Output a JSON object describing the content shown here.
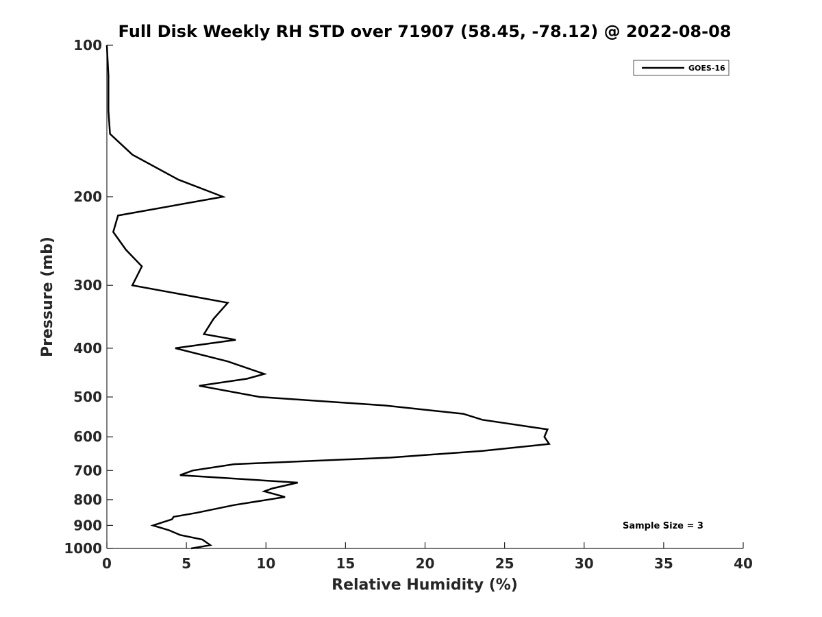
{
  "chart_data": {
    "type": "line",
    "title": "Full Disk Weekly RH STD over 71907 (58.45, -78.12) @ 2022-08-08",
    "xlabel": "Relative Humidity (%)",
    "ylabel": "Pressure (mb)",
    "xlim": [
      0,
      40
    ],
    "ylim": [
      100,
      1000
    ],
    "y_scale": "log",
    "y_reversed": true,
    "x_ticks": [
      0,
      5,
      10,
      15,
      20,
      25,
      30,
      35,
      40
    ],
    "y_ticks": [
      100,
      200,
      300,
      400,
      500,
      600,
      700,
      800,
      900,
      1000
    ],
    "grid": false,
    "legend_position": "top-right",
    "series": [
      {
        "name": "GOES-16",
        "color": "#000000",
        "points": [
          [
            0.0,
            100
          ],
          [
            0.1,
            115
          ],
          [
            0.1,
            135
          ],
          [
            0.2,
            150
          ],
          [
            1.6,
            165
          ],
          [
            4.5,
            185
          ],
          [
            7.3,
            200
          ],
          [
            0.7,
            218
          ],
          [
            0.4,
            235
          ],
          [
            1.2,
            255
          ],
          [
            2.2,
            275
          ],
          [
            1.6,
            300
          ],
          [
            7.6,
            325
          ],
          [
            6.7,
            350
          ],
          [
            6.1,
            375
          ],
          [
            8.1,
            385
          ],
          [
            4.3,
            400
          ],
          [
            7.6,
            425
          ],
          [
            9.9,
            450
          ],
          [
            8.8,
            460
          ],
          [
            5.8,
            475
          ],
          [
            9.6,
            500
          ],
          [
            17.5,
            520
          ],
          [
            22.4,
            540
          ],
          [
            23.6,
            555
          ],
          [
            27.7,
            580
          ],
          [
            27.5,
            600
          ],
          [
            27.8,
            620
          ],
          [
            23.6,
            640
          ],
          [
            17.8,
            660
          ],
          [
            8.0,
            680
          ],
          [
            5.4,
            700
          ],
          [
            4.6,
            715
          ],
          [
            12.0,
            740
          ],
          [
            10.4,
            760
          ],
          [
            9.9,
            770
          ],
          [
            11.2,
            790
          ],
          [
            8.0,
            820
          ],
          [
            5.6,
            850
          ],
          [
            4.2,
            865
          ],
          [
            4.1,
            875
          ],
          [
            2.9,
            900
          ],
          [
            3.9,
            920
          ],
          [
            4.6,
            940
          ],
          [
            6.0,
            960
          ],
          [
            6.5,
            985
          ],
          [
            5.3,
            1000
          ]
        ]
      }
    ],
    "annotations": [
      "Sample Size = 3"
    ]
  }
}
